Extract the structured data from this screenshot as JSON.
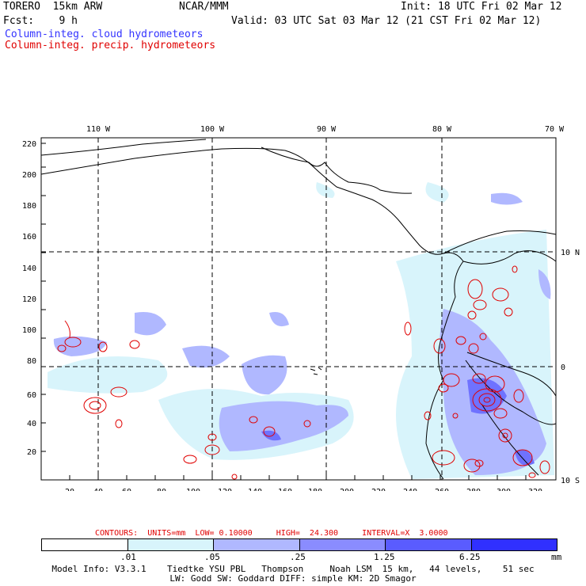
{
  "header": {
    "model": "TORERO  15km ARW",
    "org": "NCAR/MMM",
    "init": "Init: 18 UTC Fri 02 Mar 12",
    "fcst": "Fcst:    9 h",
    "valid": "Valid: 03 UTC Sat 03 Mar 12 (21 CST Fri 02 Mar 12)",
    "field1": "Column-integ. cloud hydrometeors",
    "field2": "Column-integ. precip. hydrometeors"
  },
  "axes": {
    "x_ticks": [
      "20",
      "40",
      "60",
      "80",
      "100",
      "120",
      "140",
      "160",
      "180",
      "200",
      "220",
      "240",
      "260",
      "280",
      "300",
      "320"
    ],
    "y_ticks": [
      "20",
      "40",
      "60",
      "80",
      "100",
      "120",
      "140",
      "160",
      "180",
      "200",
      "220"
    ],
    "lon_labels": [
      "110 W",
      "100 W",
      "90 W",
      "80 W",
      "70 W"
    ],
    "lat_labels": [
      "10 N",
      "0",
      "10 S"
    ]
  },
  "contour_info": "CONTOURS:  UNITS=mm  LOW= 0.10000     HIGH=  24.300     INTERVAL=X  3.0000",
  "colorbar": {
    "labels": [
      ".01",
      ".05",
      ".25",
      "1.25",
      "6.25"
    ],
    "units": "mm",
    "colors": [
      "#ffffff",
      "#d8f4fb",
      "#b0b8ff",
      "#8a8cff",
      "#5a5cff",
      "#3030ff"
    ]
  },
  "footer": {
    "line1": "Model Info: V3.3.1    Tiedtke YSU PBL   Thompson     Noah LSM  15 km,   44 levels,    51 sec",
    "line2": "LW: Godd SW: Goddard DIFF: simple KM: 2D Smagor"
  },
  "colors": {
    "cloud_text": "#3333ff",
    "precip_text": "#e00000"
  }
}
